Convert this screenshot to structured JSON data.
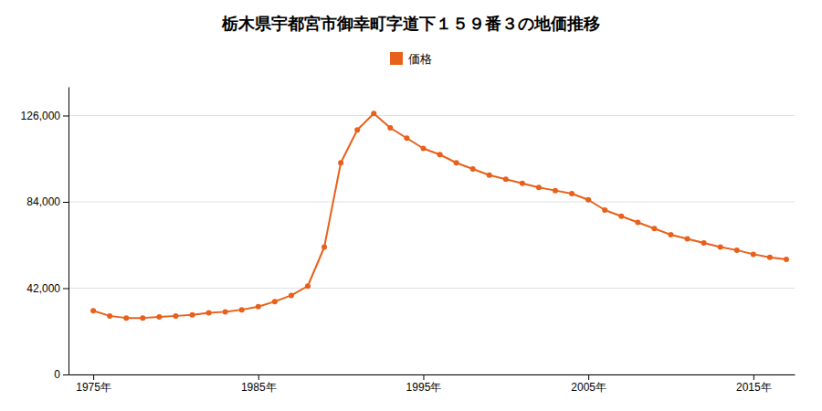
{
  "chart_data": {
    "type": "line",
    "title": "栃木県宇都宮市御幸町字道下１５９番３の地価推移",
    "x": [
      1975,
      1976,
      1977,
      1978,
      1979,
      1980,
      1981,
      1982,
      1983,
      1984,
      1985,
      1986,
      1987,
      1988,
      1989,
      1990,
      1991,
      1992,
      1993,
      1994,
      1995,
      1996,
      1997,
      1998,
      1999,
      2000,
      2001,
      2002,
      2003,
      2004,
      2005,
      2006,
      2007,
      2008,
      2009,
      2010,
      2011,
      2012,
      2013,
      2014,
      2015,
      2016,
      2017
    ],
    "series": [
      {
        "name": "価格",
        "color": "#E8601A",
        "marker": "circle",
        "line_style": "solid",
        "values": [
          31000,
          28500,
          27500,
          27500,
          28000,
          28500,
          29000,
          30000,
          30500,
          31500,
          33000,
          35500,
          38500,
          43000,
          62000,
          103000,
          119000,
          127000,
          120000,
          115000,
          110000,
          107000,
          103000,
          100000,
          97000,
          95000,
          93000,
          91000,
          89500,
          88000,
          85000,
          80000,
          77000,
          74000,
          71000,
          68000,
          66000,
          64000,
          62000,
          60500,
          58500,
          57000,
          56000
        ]
      }
    ],
    "xlim": [
      1973.5,
      2017.5
    ],
    "xticks": [
      {
        "value": 1975,
        "label": "1975年"
      },
      {
        "value": 1985,
        "label": "1985年"
      },
      {
        "value": 1995,
        "label": "1995年"
      },
      {
        "value": 2005,
        "label": "2005年"
      },
      {
        "value": 2015,
        "label": "2015年"
      }
    ],
    "ylim": [
      0,
      140000
    ],
    "yticks": [
      0,
      {
        "value": 42000,
        "label": "42,000"
      },
      {
        "value": 84000,
        "label": "84,000"
      },
      {
        "value": 126000,
        "label": "126,000"
      }
    ],
    "grid": true,
    "legend": "top"
  }
}
